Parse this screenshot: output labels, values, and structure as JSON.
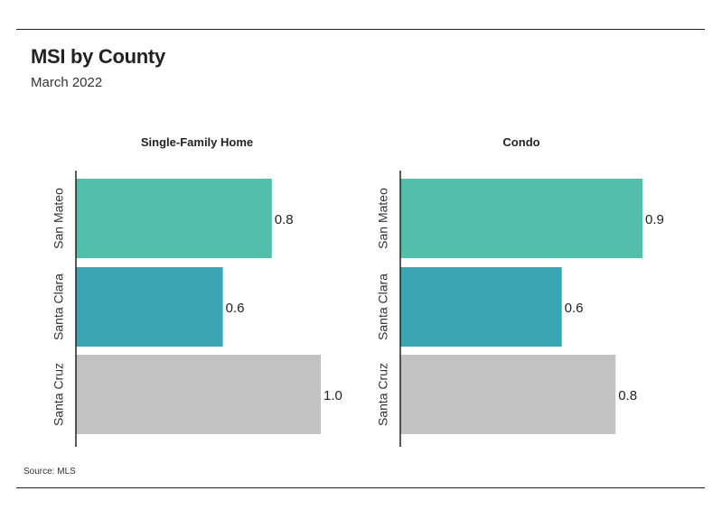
{
  "header": {
    "title": "MSI by County",
    "subtitle": "March 2022"
  },
  "footer": {
    "source": "Source: MLS"
  },
  "colors": {
    "San Mateo": "#52bfaa",
    "Santa Clara": "#3aa6b3",
    "Santa Cruz": "#c2c2c2",
    "axis": "#222222"
  },
  "chart_data": [
    {
      "type": "bar",
      "orientation": "horizontal",
      "title": "Single-Family Home",
      "categories": [
        "San Mateo",
        "Santa Clara",
        "Santa Cruz"
      ],
      "values": [
        0.8,
        0.6,
        1.0
      ],
      "data_labels": [
        "0.8",
        "0.6",
        "1.0"
      ],
      "xlim": [
        0,
        1.0
      ],
      "grid": false,
      "legend": "none"
    },
    {
      "type": "bar",
      "orientation": "horizontal",
      "title": "Condo",
      "categories": [
        "San Mateo",
        "Santa Clara",
        "Santa Cruz"
      ],
      "values": [
        0.9,
        0.6,
        0.8
      ],
      "data_labels": [
        "0.9",
        "0.6",
        "0.8"
      ],
      "xlim": [
        0,
        0.9
      ],
      "grid": false,
      "legend": "none"
    }
  ]
}
